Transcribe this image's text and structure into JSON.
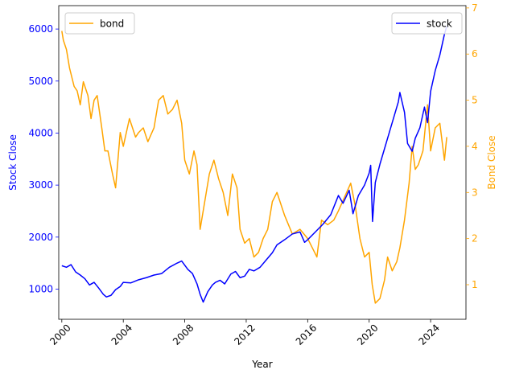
{
  "chart_data": {
    "type": "line",
    "title": "",
    "xlabel": "Year",
    "ylabel_left": "Stock Close",
    "ylabel_right": "Bond Close",
    "xlim": [
      1999.8,
      2026.3
    ],
    "ylim_left": [
      420,
      6450
    ],
    "ylim_right": [
      0.25,
      7.05
    ],
    "x_ticks": [
      2000,
      2004,
      2008,
      2012,
      2016,
      2020,
      2024
    ],
    "y_left_ticks": [
      1000,
      2000,
      3000,
      4000,
      5000,
      6000
    ],
    "y_right_ticks": [
      1,
      2,
      3,
      4,
      5,
      6,
      7
    ],
    "left_axis_color": "#0000ff",
    "right_axis_color": "#ffa500",
    "series": [
      {
        "name": "stock",
        "axis": "left",
        "color": "#0000ff",
        "legend": "top-right",
        "x": [
          2000.0,
          2000.3,
          2000.6,
          2000.9,
          2001.2,
          2001.5,
          2001.8,
          2002.1,
          2002.4,
          2002.7,
          2002.9,
          2003.2,
          2003.5,
          2003.8,
          2004.0,
          2004.5,
          2005.0,
          2005.5,
          2006.0,
          2006.5,
          2007.0,
          2007.5,
          2007.8,
          2008.2,
          2008.5,
          2008.8,
          2009.0,
          2009.2,
          2009.5,
          2009.8,
          2010.0,
          2010.3,
          2010.6,
          2011.0,
          2011.3,
          2011.6,
          2011.9,
          2012.2,
          2012.5,
          2012.9,
          2013.3,
          2013.7,
          2014.0,
          2014.5,
          2015.0,
          2015.5,
          2015.8,
          2016.0,
          2016.5,
          2017.0,
          2017.5,
          2018.0,
          2018.3,
          2018.7,
          2018.95,
          2019.3,
          2019.7,
          2020.0,
          2020.1,
          2020.22,
          2020.4,
          2020.7,
          2021.0,
          2021.3,
          2021.6,
          2021.9,
          2022.0,
          2022.3,
          2022.5,
          2022.8,
          2023.0,
          2023.3,
          2023.6,
          2023.8,
          2024.0,
          2024.3,
          2024.6,
          2024.9,
          2025.05
        ],
        "values": [
          1450,
          1420,
          1470,
          1330,
          1270,
          1200,
          1080,
          1130,
          1020,
          900,
          850,
          880,
          990,
          1050,
          1130,
          1120,
          1180,
          1220,
          1270,
          1300,
          1420,
          1500,
          1540,
          1380,
          1300,
          1100,
          900,
          750,
          950,
          1080,
          1130,
          1170,
          1100,
          1290,
          1340,
          1220,
          1250,
          1380,
          1350,
          1420,
          1560,
          1700,
          1850,
          1950,
          2060,
          2100,
          1900,
          1950,
          2100,
          2250,
          2430,
          2800,
          2650,
          2900,
          2450,
          2800,
          3000,
          3230,
          3380,
          2300,
          3050,
          3400,
          3700,
          4000,
          4300,
          4600,
          4780,
          4400,
          3800,
          3650,
          3900,
          4100,
          4500,
          4200,
          4800,
          5200,
          5500,
          5900,
          6050
        ]
      },
      {
        "name": "bond",
        "axis": "right",
        "color": "#ffa500",
        "legend": "top-left",
        "x": [
          2000.0,
          2000.1,
          2000.3,
          2000.5,
          2000.8,
          2001.0,
          2001.2,
          2001.4,
          2001.7,
          2001.9,
          2002.1,
          2002.3,
          2002.6,
          2002.8,
          2003.0,
          2003.3,
          2003.5,
          2003.8,
          2004.0,
          2004.4,
          2004.8,
          2005.0,
          2005.3,
          2005.6,
          2006.0,
          2006.3,
          2006.6,
          2006.9,
          2007.2,
          2007.5,
          2007.8,
          2008.0,
          2008.3,
          2008.6,
          2008.8,
          2009.0,
          2009.3,
          2009.6,
          2009.9,
          2010.2,
          2010.5,
          2010.8,
          2011.1,
          2011.4,
          2011.6,
          2011.9,
          2012.2,
          2012.5,
          2012.8,
          2013.1,
          2013.4,
          2013.7,
          2014.0,
          2014.5,
          2015.0,
          2015.5,
          2016.0,
          2016.3,
          2016.6,
          2016.9,
          2017.3,
          2017.7,
          2018.0,
          2018.4,
          2018.8,
          2019.1,
          2019.4,
          2019.7,
          2020.0,
          2020.2,
          2020.4,
          2020.7,
          2021.0,
          2021.2,
          2021.5,
          2021.8,
          2022.0,
          2022.3,
          2022.6,
          2022.8,
          2023.0,
          2023.2,
          2023.5,
          2023.8,
          2024.0,
          2024.3,
          2024.6,
          2024.9,
          2025.05
        ],
        "values": [
          6.5,
          6.3,
          6.1,
          5.7,
          5.3,
          5.2,
          4.9,
          5.4,
          5.1,
          4.6,
          5.0,
          5.1,
          4.4,
          3.9,
          3.9,
          3.4,
          3.1,
          4.3,
          4.0,
          4.6,
          4.2,
          4.3,
          4.4,
          4.1,
          4.4,
          5.0,
          5.1,
          4.7,
          4.8,
          5.0,
          4.5,
          3.7,
          3.4,
          3.9,
          3.6,
          2.2,
          2.8,
          3.4,
          3.7,
          3.3,
          3.0,
          2.5,
          3.4,
          3.1,
          2.2,
          1.9,
          2.0,
          1.6,
          1.7,
          2.0,
          2.2,
          2.8,
          3.0,
          2.5,
          2.1,
          2.2,
          2.0,
          1.8,
          1.6,
          2.4,
          2.3,
          2.4,
          2.6,
          2.9,
          3.2,
          2.7,
          2.0,
          1.6,
          1.7,
          1.0,
          0.6,
          0.7,
          1.1,
          1.6,
          1.3,
          1.5,
          1.8,
          2.4,
          3.2,
          4.0,
          3.5,
          3.6,
          3.9,
          4.9,
          3.9,
          4.4,
          4.5,
          3.7,
          4.2
        ]
      }
    ]
  }
}
